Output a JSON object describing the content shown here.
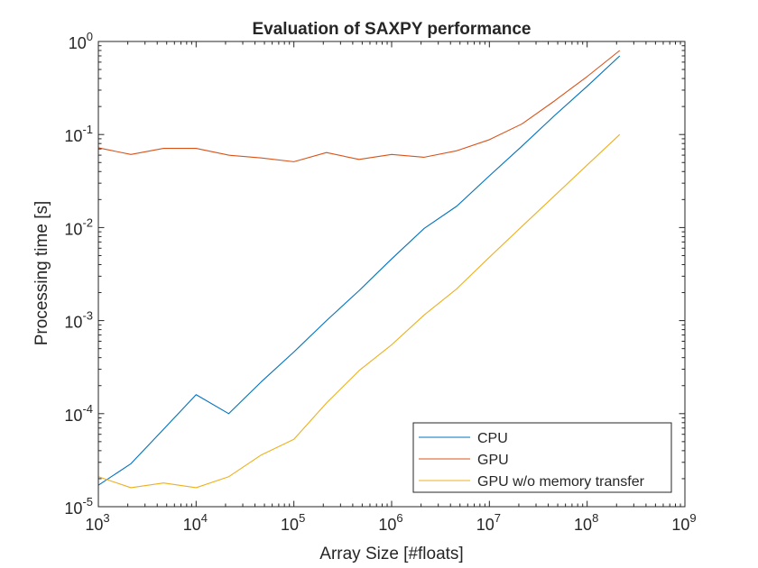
{
  "chart_data": {
    "type": "line",
    "title": "Evaluation of SAXPY performance",
    "xlabel": "Array Size [#floats]",
    "ylabel": "Processing time [s]",
    "xscale": "log",
    "yscale": "log",
    "xlim": [
      1000,
      1000000000
    ],
    "ylim": [
      1e-05,
      1
    ],
    "grid": false,
    "legend_position": "bottom-right",
    "x_ticks": [
      {
        "value": 1000,
        "base": "10",
        "exp": "3"
      },
      {
        "value": 10000,
        "base": "10",
        "exp": "4"
      },
      {
        "value": 100000,
        "base": "10",
        "exp": "5"
      },
      {
        "value": 1000000,
        "base": "10",
        "exp": "6"
      },
      {
        "value": 10000000,
        "base": "10",
        "exp": "7"
      },
      {
        "value": 100000000,
        "base": "10",
        "exp": "8"
      },
      {
        "value": 1000000000,
        "base": "10",
        "exp": "9"
      }
    ],
    "y_ticks": [
      {
        "value": 1e-05,
        "base": "10",
        "exp": "-5"
      },
      {
        "value": 0.0001,
        "base": "10",
        "exp": "-4"
      },
      {
        "value": 0.001,
        "base": "10",
        "exp": "-3"
      },
      {
        "value": 0.01,
        "base": "10",
        "exp": "-2"
      },
      {
        "value": 0.1,
        "base": "10",
        "exp": "-1"
      },
      {
        "value": 1,
        "base": "10",
        "exp": "0"
      }
    ],
    "x": [
      1000,
      2154,
      4642,
      10000,
      21544,
      46416,
      100000,
      215443,
      464159,
      1000000,
      2154435,
      4641589,
      10000000,
      21544347,
      46415888,
      100000000,
      215443469
    ],
    "series": [
      {
        "name": "CPU",
        "color": "#0072BD",
        "values": [
          1.7e-05,
          2.9e-05,
          6.8e-05,
          0.00016,
          0.0001,
          0.00022,
          0.00046,
          0.001,
          0.0021,
          0.0046,
          0.0098,
          0.017,
          0.036,
          0.075,
          0.16,
          0.33,
          0.7
        ]
      },
      {
        "name": "GPU",
        "color": "#D95319",
        "values": [
          0.072,
          0.061,
          0.071,
          0.071,
          0.06,
          0.056,
          0.051,
          0.064,
          0.054,
          0.061,
          0.057,
          0.067,
          0.088,
          0.13,
          0.23,
          0.42,
          0.8
        ]
      },
      {
        "name": "GPU w/o memory transfer",
        "color": "#EDB120",
        "values": [
          2.1e-05,
          1.6e-05,
          1.8e-05,
          1.6e-05,
          2.1e-05,
          3.6e-05,
          5.3e-05,
          0.00013,
          0.00029,
          0.00055,
          0.00115,
          0.0022,
          0.0048,
          0.0103,
          0.022,
          0.047,
          0.1
        ]
      }
    ]
  }
}
